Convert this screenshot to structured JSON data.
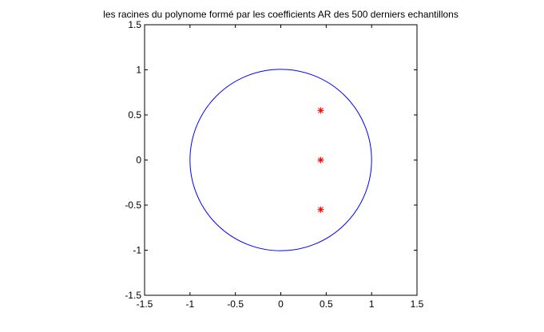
{
  "chart_data": {
    "type": "scatter",
    "title": "les racines du polynome formé par les coefficients AR des 500 derniers echantillons",
    "xlabel": "",
    "ylabel": "",
    "xlim": [
      -1.5,
      1.5
    ],
    "ylim": [
      -1.5,
      1.5
    ],
    "xticks": [
      -1.5,
      -1,
      -0.5,
      0,
      0.5,
      1,
      1.5
    ],
    "yticks": [
      -1.5,
      -1,
      -0.5,
      0,
      0.5,
      1,
      1.5
    ],
    "xtick_labels": [
      "-1.5",
      "-1",
      "-0.5",
      "0",
      "0.5",
      "1",
      "1.5"
    ],
    "ytick_labels": [
      "-1.5",
      "-1",
      "-0.5",
      "0",
      "0.5",
      "1",
      "1.5"
    ],
    "grid": false,
    "unit_circle": {
      "center": [
        0,
        0
      ],
      "radius": 1,
      "color": "#0000ff"
    },
    "series": [
      {
        "marker": "*",
        "color": "#ff0000",
        "points": [
          {
            "x": 0.44,
            "y": 0.55
          },
          {
            "x": 0.44,
            "y": 0.0
          },
          {
            "x": 0.44,
            "y": -0.55
          }
        ]
      }
    ]
  }
}
